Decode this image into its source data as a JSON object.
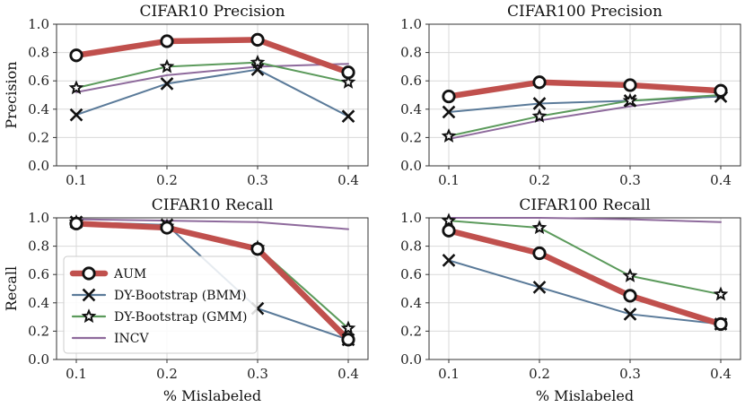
{
  "figure": {
    "xlabel": "% Mislabeled",
    "colors": {
      "AUM": "#c0504d",
      "DY-Bootstrap (BMM)": "#5a7a99",
      "DY-Bootstrap (GMM)": "#5b9a5b",
      "INCV": "#8e6a9c"
    },
    "markers": {
      "AUM": "circle-icon",
      "DY-Bootstrap (BMM)": "x-icon",
      "DY-Bootstrap (GMM)": "star-icon",
      "INCV": "none"
    },
    "legend": {
      "placement": "lower-left of CIFAR10 Recall panel",
      "entries": [
        "AUM",
        "DY-Bootstrap (BMM)",
        "DY-Bootstrap (GMM)",
        "INCV"
      ]
    }
  },
  "chart_data": [
    {
      "type": "line",
      "title": "CIFAR10 Precision",
      "xlabel": "",
      "ylabel": "Precision",
      "x": [
        0.1,
        0.2,
        0.3,
        0.4
      ],
      "xticks": [
        "0.1",
        "0.2",
        "0.3",
        "0.4"
      ],
      "yticks": [
        "0.0",
        "0.2",
        "0.4",
        "0.6",
        "0.8",
        "1.0"
      ],
      "ylim": [
        0,
        1
      ],
      "grid": true,
      "series": [
        {
          "name": "AUM",
          "values": [
            0.78,
            0.88,
            0.89,
            0.66
          ]
        },
        {
          "name": "DY-Bootstrap (BMM)",
          "values": [
            0.36,
            0.58,
            0.68,
            0.35
          ]
        },
        {
          "name": "DY-Bootstrap (GMM)",
          "values": [
            0.55,
            0.7,
            0.73,
            0.59
          ]
        },
        {
          "name": "INCV",
          "values": [
            0.52,
            0.64,
            0.7,
            0.72
          ]
        }
      ]
    },
    {
      "type": "line",
      "title": "CIFAR100 Precision",
      "xlabel": "",
      "ylabel": "",
      "x": [
        0.1,
        0.2,
        0.3,
        0.4
      ],
      "xticks": [
        "0.1",
        "0.2",
        "0.3",
        "0.4"
      ],
      "yticks": [
        "0.0",
        "0.2",
        "0.4",
        "0.6",
        "0.8",
        "1.0"
      ],
      "ylim": [
        0,
        1
      ],
      "grid": true,
      "series": [
        {
          "name": "AUM",
          "values": [
            0.49,
            0.59,
            0.57,
            0.53
          ]
        },
        {
          "name": "DY-Bootstrap (BMM)",
          "values": [
            0.38,
            0.44,
            0.46,
            0.49
          ]
        },
        {
          "name": "DY-Bootstrap (GMM)",
          "values": [
            0.21,
            0.35,
            0.46,
            0.5
          ]
        },
        {
          "name": "INCV",
          "values": [
            0.19,
            0.32,
            0.42,
            0.5
          ]
        }
      ]
    },
    {
      "type": "line",
      "title": "CIFAR10 Recall",
      "xlabel": "% Mislabeled",
      "ylabel": "Recall",
      "x": [
        0.1,
        0.2,
        0.3,
        0.4
      ],
      "xticks": [
        "0.1",
        "0.2",
        "0.3",
        "0.4"
      ],
      "yticks": [
        "0.0",
        "0.2",
        "0.4",
        "0.6",
        "0.8",
        "1.0"
      ],
      "ylim": [
        0,
        1
      ],
      "grid": true,
      "legend": true,
      "series": [
        {
          "name": "AUM",
          "values": [
            0.96,
            0.93,
            0.78,
            0.14
          ]
        },
        {
          "name": "DY-Bootstrap (BMM)",
          "values": [
            0.97,
            0.95,
            0.36,
            0.14
          ]
        },
        {
          "name": "DY-Bootstrap (GMM)",
          "values": [
            0.97,
            0.94,
            0.79,
            0.22
          ]
        },
        {
          "name": "INCV",
          "values": [
            0.99,
            0.98,
            0.97,
            0.92
          ]
        }
      ]
    },
    {
      "type": "line",
      "title": "CIFAR100 Recall",
      "xlabel": "% Mislabeled",
      "ylabel": "",
      "x": [
        0.1,
        0.2,
        0.3,
        0.4
      ],
      "xticks": [
        "0.1",
        "0.2",
        "0.3",
        "0.4"
      ],
      "yticks": [
        "0.0",
        "0.2",
        "0.4",
        "0.6",
        "0.8",
        "1.0"
      ],
      "ylim": [
        0,
        1
      ],
      "grid": true,
      "series": [
        {
          "name": "AUM",
          "values": [
            0.91,
            0.75,
            0.45,
            0.25
          ]
        },
        {
          "name": "DY-Bootstrap (BMM)",
          "values": [
            0.7,
            0.51,
            0.32,
            0.25
          ]
        },
        {
          "name": "DY-Bootstrap (GMM)",
          "values": [
            0.98,
            0.93,
            0.59,
            0.46
          ]
        },
        {
          "name": "INCV",
          "values": [
            1.0,
            1.0,
            0.99,
            0.97
          ]
        }
      ]
    }
  ]
}
